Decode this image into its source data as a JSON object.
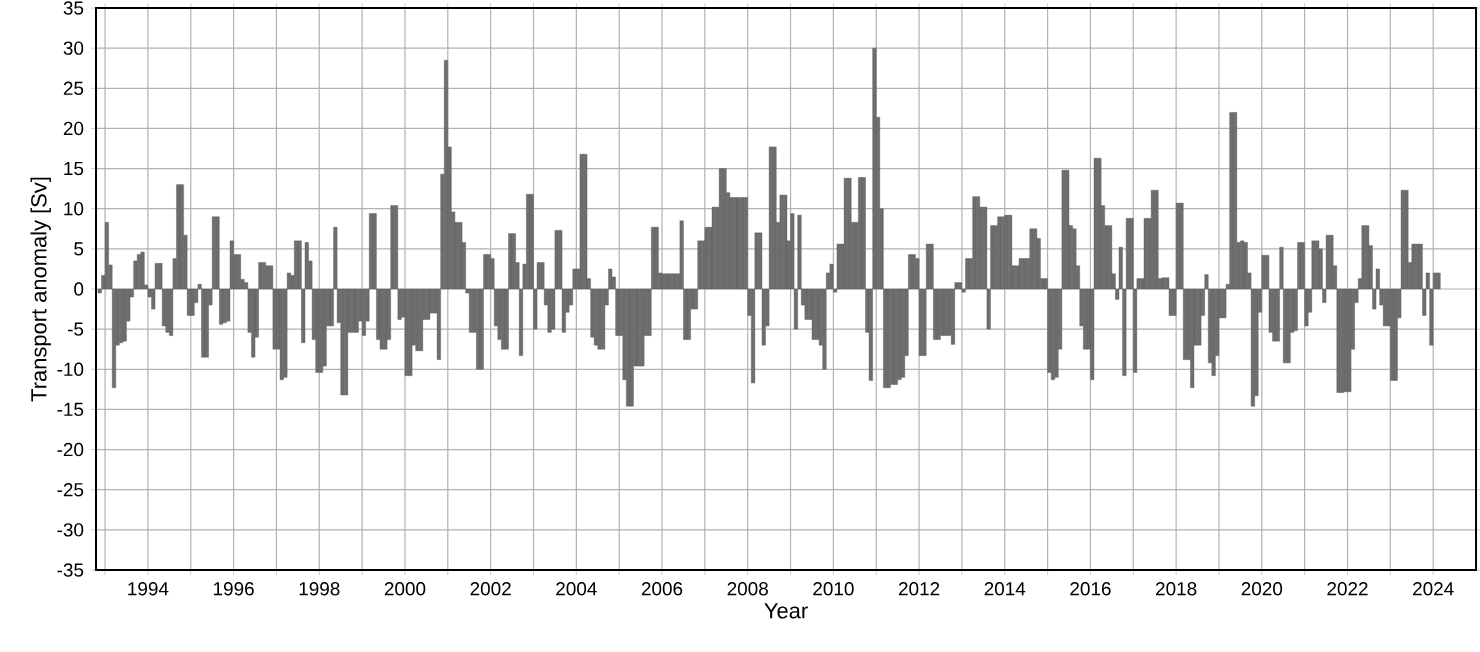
{
  "chart_data": {
    "type": "bar",
    "xlabel": "Year",
    "ylabel": "Transport anomaly [Sv]",
    "color": "#6e6e6e",
    "grid": true,
    "xlim": [
      "1992-10-15",
      "2025-01-01"
    ],
    "xticks": [
      {
        "value": "1993",
        "label": null
      },
      "1994",
      {
        "value": "1995",
        "label": null
      },
      "1996",
      {
        "value": "1997",
        "label": null
      },
      "1998",
      {
        "value": "1999",
        "label": null
      },
      "2000",
      {
        "value": "2001",
        "label": null
      },
      "2002",
      {
        "value": "2003",
        "label": null
      },
      "2004",
      {
        "value": "2005",
        "label": null
      },
      "2006",
      {
        "value": "2007",
        "label": null
      },
      "2008",
      {
        "value": "2009",
        "label": null
      },
      "2010",
      {
        "value": "2011",
        "label": null
      },
      "2012",
      {
        "value": "2013",
        "label": null
      },
      "2014",
      {
        "value": "2015",
        "label": null
      },
      "2016",
      {
        "value": "2017",
        "label": null
      },
      "2018",
      {
        "value": "2019",
        "label": null
      },
      "2020",
      {
        "value": "2021",
        "label": null
      },
      "2022",
      {
        "value": "2023",
        "label": null
      },
      "2024"
    ],
    "ylim": [
      -35,
      35
    ],
    "yticks": [
      -35,
      -30,
      -25,
      -20,
      -15,
      -10,
      -5,
      0,
      5,
      10,
      15,
      20,
      25,
      30,
      35
    ],
    "x": [
      "1992-11",
      "1992-12",
      "1993-01",
      "1993-02",
      "1993-03",
      "1993-04",
      "1993-05",
      "1993-06",
      "1993-07",
      "1993-08",
      "1993-09",
      "1993-10",
      "1993-11",
      "1993-12",
      "1994-01",
      "1994-02",
      "1994-03",
      "1994-04",
      "1994-05",
      "1994-06",
      "1994-07",
      "1994-08",
      "1994-09",
      "1994-10",
      "1994-11",
      "1994-12",
      "1995-01",
      "1995-02",
      "1995-03",
      "1995-04",
      "1995-05",
      "1995-06",
      "1995-07",
      "1995-08",
      "1995-09",
      "1995-10",
      "1995-11",
      "1995-12",
      "1996-01",
      "1996-02",
      "1996-03",
      "1996-04",
      "1996-05",
      "1996-06",
      "1996-07",
      "1996-08",
      "1996-09",
      "1996-10",
      "1996-11",
      "1996-12",
      "1997-01",
      "1997-02",
      "1997-03",
      "1997-04",
      "1997-05",
      "1997-06",
      "1997-07",
      "1997-08",
      "1997-09",
      "1997-10",
      "1997-11",
      "1997-12",
      "1998-01",
      "1998-02",
      "1998-03",
      "1998-04",
      "1998-05",
      "1998-06",
      "1998-07",
      "1998-08",
      "1998-09",
      "1998-10",
      "1998-11",
      "1998-12",
      "1999-01",
      "1999-02",
      "1999-03",
      "1999-04",
      "1999-05",
      "1999-06",
      "1999-07",
      "1999-08",
      "1999-09",
      "1999-10",
      "1999-11",
      "1999-12",
      "2000-01",
      "2000-02",
      "2000-03",
      "2000-04",
      "2000-05",
      "2000-06",
      "2000-07",
      "2000-08",
      "2000-09",
      "2000-10",
      "2000-11",
      "2000-12",
      "2001-01",
      "2001-02",
      "2001-03",
      "2001-04",
      "2001-05",
      "2001-06",
      "2001-07",
      "2001-08",
      "2001-09",
      "2001-10",
      "2001-11",
      "2001-12",
      "2002-01",
      "2002-02",
      "2002-03",
      "2002-04",
      "2002-05",
      "2002-06",
      "2002-07",
      "2002-08",
      "2002-09",
      "2002-10",
      "2002-11",
      "2002-12",
      "2003-01",
      "2003-02",
      "2003-03",
      "2003-04",
      "2003-05",
      "2003-06",
      "2003-07",
      "2003-08",
      "2003-09",
      "2003-10",
      "2003-11",
      "2003-12",
      "2004-01",
      "2004-02",
      "2004-03",
      "2004-04",
      "2004-05",
      "2004-06",
      "2004-07",
      "2004-08",
      "2004-09",
      "2004-10",
      "2004-11",
      "2004-12",
      "2005-01",
      "2005-02",
      "2005-03",
      "2005-04",
      "2005-05",
      "2005-06",
      "2005-07",
      "2005-08",
      "2005-09",
      "2005-10",
      "2005-11",
      "2005-12",
      "2006-01",
      "2006-02",
      "2006-03",
      "2006-04",
      "2006-05",
      "2006-06",
      "2006-07",
      "2006-08",
      "2006-09",
      "2006-10",
      "2006-11",
      "2006-12",
      "2007-01",
      "2007-02",
      "2007-03",
      "2007-04",
      "2007-05",
      "2007-06",
      "2007-07",
      "2007-08",
      "2007-09",
      "2007-10",
      "2007-11",
      "2007-12",
      "2008-01",
      "2008-02",
      "2008-03",
      "2008-04",
      "2008-05",
      "2008-06",
      "2008-07",
      "2008-08",
      "2008-09",
      "2008-10",
      "2008-11",
      "2008-12",
      "2009-01",
      "2009-02",
      "2009-03",
      "2009-04",
      "2009-05",
      "2009-06",
      "2009-07",
      "2009-08",
      "2009-09",
      "2009-10",
      "2009-11",
      "2009-12",
      "2010-01",
      "2010-02",
      "2010-03",
      "2010-04",
      "2010-05",
      "2010-06",
      "2010-07",
      "2010-08",
      "2010-09",
      "2010-10",
      "2010-11",
      "2010-12",
      "2011-01",
      "2011-02",
      "2011-03",
      "2011-04",
      "2011-05",
      "2011-06",
      "2011-07",
      "2011-08",
      "2011-09",
      "2011-10",
      "2011-11",
      "2011-12",
      "2012-01",
      "2012-02",
      "2012-03",
      "2012-04",
      "2012-05",
      "2012-06",
      "2012-07",
      "2012-08",
      "2012-09",
      "2012-10",
      "2012-11",
      "2012-12",
      "2013-01",
      "2013-02",
      "2013-03",
      "2013-04",
      "2013-05",
      "2013-06",
      "2013-07",
      "2013-08",
      "2013-09",
      "2013-10",
      "2013-11",
      "2013-12",
      "2014-01",
      "2014-02",
      "2014-03",
      "2014-04",
      "2014-05",
      "2014-06",
      "2014-07",
      "2014-08",
      "2014-09",
      "2014-10",
      "2014-11",
      "2014-12",
      "2015-01",
      "2015-02",
      "2015-03",
      "2015-04",
      "2015-05",
      "2015-06",
      "2015-07",
      "2015-08",
      "2015-09",
      "2015-10",
      "2015-11",
      "2015-12",
      "2016-01",
      "2016-02",
      "2016-03",
      "2016-04",
      "2016-05",
      "2016-06",
      "2016-07",
      "2016-08",
      "2016-09",
      "2016-10",
      "2016-11",
      "2016-12",
      "2017-01",
      "2017-02",
      "2017-03",
      "2017-04",
      "2017-05",
      "2017-06",
      "2017-07",
      "2017-08",
      "2017-09",
      "2017-10",
      "2017-11",
      "2017-12",
      "2018-01",
      "2018-02",
      "2018-03",
      "2018-04",
      "2018-05",
      "2018-06",
      "2018-07",
      "2018-08",
      "2018-09",
      "2018-10",
      "2018-11",
      "2018-12",
      "2019-01",
      "2019-02",
      "2019-03",
      "2019-04",
      "2019-05",
      "2019-06",
      "2019-07",
      "2019-08",
      "2019-09",
      "2019-10",
      "2019-11",
      "2019-12",
      "2020-01",
      "2020-02",
      "2020-03",
      "2020-04",
      "2020-05",
      "2020-06",
      "2020-07",
      "2020-08",
      "2020-09",
      "2020-10",
      "2020-11",
      "2020-12",
      "2021-01",
      "2021-02",
      "2021-03",
      "2021-04",
      "2021-05",
      "2021-06",
      "2021-07",
      "2021-08",
      "2021-09",
      "2021-10",
      "2021-11",
      "2021-12",
      "2022-01",
      "2022-02",
      "2022-03",
      "2022-04",
      "2022-05",
      "2022-06",
      "2022-07",
      "2022-08",
      "2022-09",
      "2022-10",
      "2022-11",
      "2022-12",
      "2023-01",
      "2023-02",
      "2023-03",
      "2023-04",
      "2023-05",
      "2023-06",
      "2023-07",
      "2023-08",
      "2023-09",
      "2023-10",
      "2023-11",
      "2023-12",
      "2024-01",
      "2024-02"
    ],
    "values": [
      -0.5,
      1.7,
      8.3,
      3,
      -12.3,
      -7,
      -6.7,
      -6.5,
      -4,
      -1,
      3.5,
      4.3,
      4.6,
      0.5,
      -1,
      -2.5,
      3.2,
      3.2,
      -4.6,
      -5.4,
      -5.8,
      3.8,
      13,
      13,
      6.7,
      -3.3,
      -3.3,
      -1.7,
      0.6,
      -8.5,
      -8.5,
      -2,
      9,
      9,
      -4.4,
      -4.2,
      -4,
      6,
      4.3,
      4.3,
      1.2,
      0.8,
      -5.4,
      -8.5,
      -6,
      3.3,
      3.3,
      2.9,
      2.9,
      -7.5,
      -7.5,
      -11.3,
      -11,
      2,
      1.7,
      6,
      6,
      -6.7,
      5.8,
      3.5,
      -6.3,
      -10.4,
      -10.4,
      -9.6,
      -4.6,
      -4.6,
      7.7,
      -4.2,
      -13.2,
      -13.2,
      -5.4,
      -5.4,
      -5.4,
      -4,
      -5.8,
      -4,
      9.4,
      9.4,
      -6.3,
      -7.5,
      -7.5,
      -6.3,
      10.4,
      10.4,
      -3.8,
      -3.5,
      -10.8,
      -10.8,
      -7,
      -7.7,
      -7.7,
      -3.8,
      -3.8,
      -3,
      -3,
      -8.8,
      14.3,
      28.5,
      17.7,
      9.6,
      8.3,
      8.3,
      5.8,
      -0.5,
      -5.4,
      -5.4,
      -10,
      -10,
      4.3,
      4.3,
      3.8,
      -4.6,
      -6.3,
      -7.5,
      -7.5,
      6.9,
      6.9,
      3.3,
      -8.3,
      3.1,
      11.8,
      11.8,
      -5,
      3.3,
      3.3,
      -2,
      -5.4,
      -5,
      7.3,
      7.3,
      -5.4,
      -2.9,
      -2,
      2.5,
      2.5,
      16.8,
      16.8,
      1.3,
      -6,
      -7,
      -7.5,
      -7.5,
      -2,
      2.5,
      1.5,
      -5.8,
      -5.8,
      -11.3,
      -14.6,
      -14.6,
      -9.6,
      -9.6,
      -9.6,
      -5.8,
      -5.8,
      7.7,
      7.7,
      2,
      1.9,
      1.9,
      1.9,
      1.9,
      1.9,
      8.5,
      -6.3,
      -6.3,
      -2.5,
      -2.5,
      6,
      6,
      7.7,
      7.7,
      10.2,
      10.2,
      15,
      15,
      12,
      11.4,
      11.4,
      11.4,
      11.4,
      11.4,
      -3.3,
      -11.7,
      7,
      7,
      -7,
      -4.6,
      17.7,
      17.7,
      8.3,
      11.7,
      11.7,
      6,
      9.4,
      -5,
      9.2,
      -2,
      -3.8,
      -3.8,
      -6.3,
      -6.3,
      -7,
      -10,
      2,
      3.1,
      -0.4,
      5.6,
      5.6,
      13.8,
      13.8,
      8.3,
      8.3,
      13.9,
      13.9,
      -5.4,
      -11.4,
      30,
      21.4,
      10,
      -12.3,
      -12.3,
      -11.9,
      -11.9,
      -11.3,
      -11,
      -8.3,
      4.3,
      4.3,
      3.8,
      -8.3,
      -8.3,
      5.6,
      5.6,
      -6.3,
      -6.3,
      -5.8,
      -5.8,
      -5.8,
      -6.9,
      0.8,
      0.8,
      -0.4,
      3.8,
      3.8,
      11.5,
      11.5,
      10.2,
      10.2,
      -5,
      7.9,
      7.9,
      9,
      9,
      9.2,
      9.2,
      2.9,
      2.9,
      3.8,
      3.8,
      3.8,
      7.5,
      7.5,
      6.3,
      1.3,
      1.3,
      -10.4,
      -11.3,
      -11,
      -7.5,
      14.8,
      14.8,
      7.9,
      7.5,
      2.9,
      -4.6,
      -7.5,
      -7.5,
      -11.3,
      16.3,
      16.3,
      10.4,
      7.9,
      7.9,
      1.9,
      -1.3,
      5.2,
      -10.8,
      8.8,
      8.8,
      -10.4,
      1.3,
      1.3,
      8.8,
      8.8,
      12.3,
      12.3,
      1.3,
      1.4,
      1.4,
      -3.3,
      -3.3,
      10.7,
      10.7,
      -8.8,
      -8.8,
      -12.3,
      -7,
      -7,
      -3.3,
      1.8,
      -9.2,
      -10.8,
      -8.3,
      -3.6,
      -3.6,
      0.6,
      22,
      22,
      5.8,
      6,
      5.8,
      2,
      -14.6,
      -13.3,
      -2.9,
      4.2,
      4.2,
      -5.4,
      -6.5,
      -6.5,
      5.2,
      -9.2,
      -9.2,
      -5.4,
      -5.2,
      5.8,
      5.8,
      -4.6,
      -2.9,
      6,
      6,
      5,
      -1.7,
      6.7,
      6.7,
      2.9,
      -12.9,
      -12.9,
      -12.8,
      -12.8,
      -7.5,
      -1.7,
      1.3,
      7.9,
      7.9,
      5.4,
      -2.5,
      2.5,
      -2,
      -4.6,
      -4.6,
      -11.4,
      -11.4,
      -3.6,
      12.3,
      12.3,
      3.3,
      5.6,
      5.6,
      5.6,
      -3.3,
      2,
      -7,
      2,
      2
    ]
  }
}
